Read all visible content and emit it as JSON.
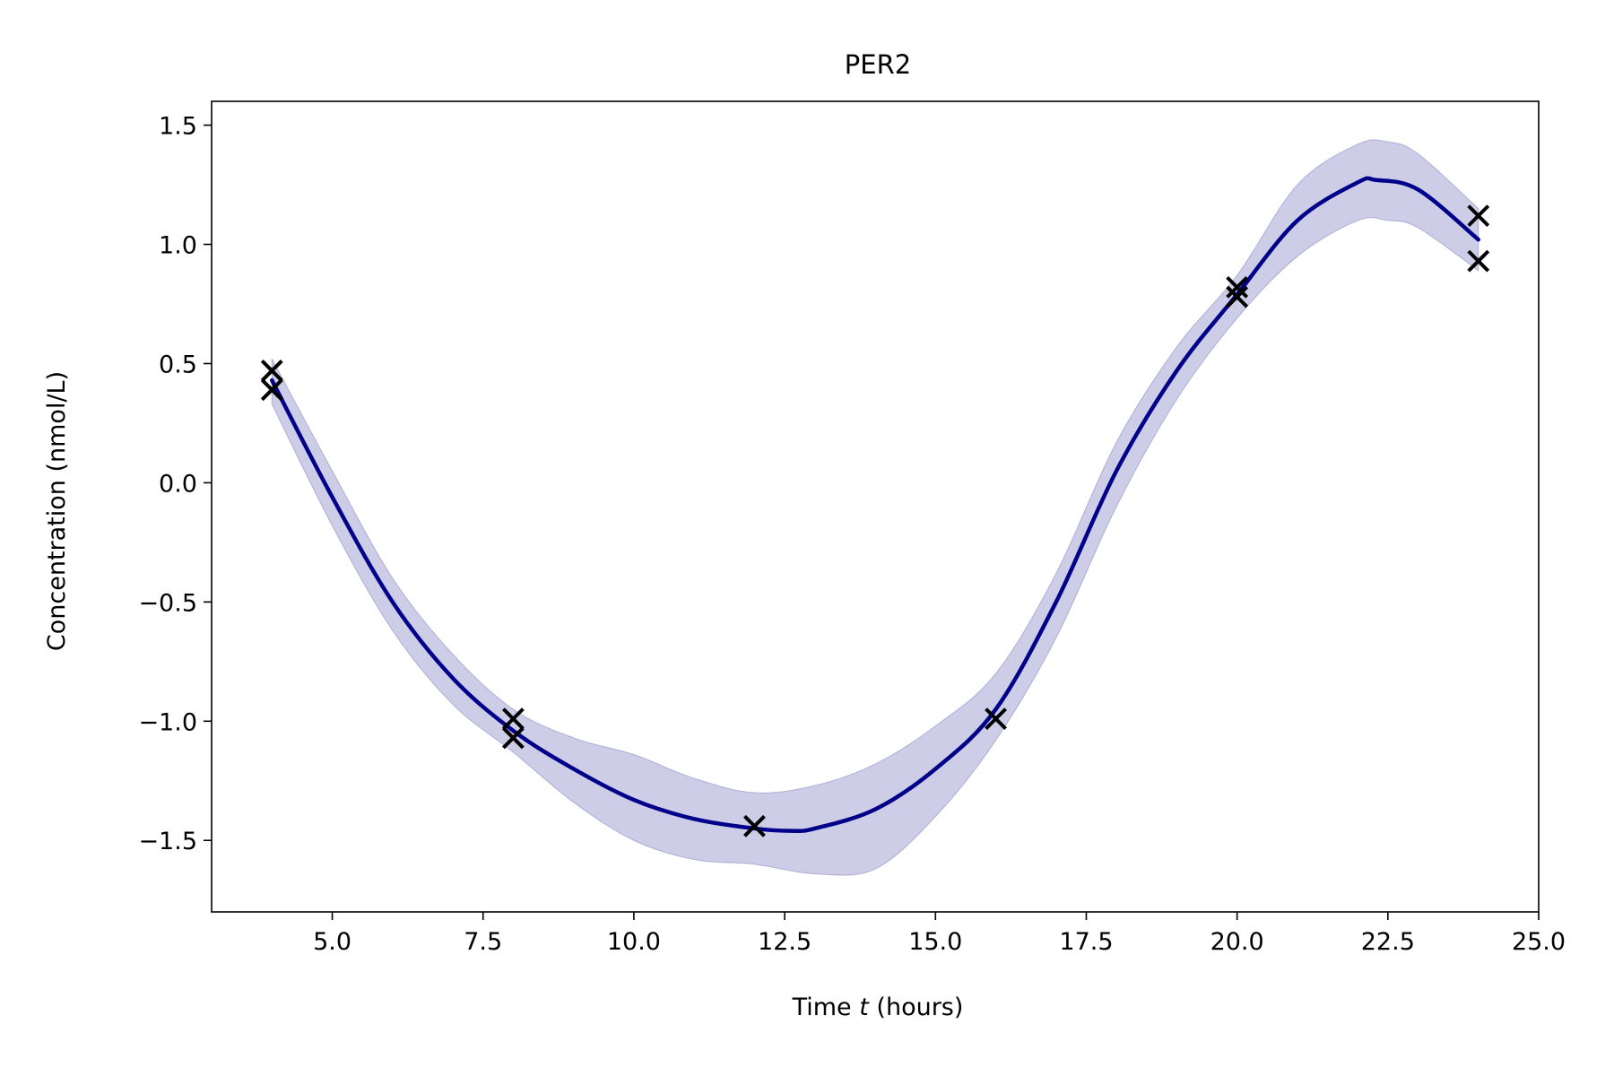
{
  "chart_data": {
    "type": "line",
    "title": "PER2",
    "xlabel_prefix": "Time ",
    "xlabel_var": "t",
    "xlabel_suffix": " (hours)",
    "ylabel": "Concentration (nmol/L)",
    "xlim": [
      3.0,
      25.0
    ],
    "ylim": [
      -1.8,
      1.6
    ],
    "xticks": [
      5.0,
      7.5,
      10.0,
      12.5,
      15.0,
      17.5,
      20.0,
      22.5,
      25.0
    ],
    "xtick_labels": [
      "5.0",
      "7.5",
      "10.0",
      "12.5",
      "15.0",
      "17.5",
      "20.0",
      "22.5",
      "25.0"
    ],
    "yticks": [
      1.5,
      1.0,
      0.5,
      0.0,
      -0.5,
      -1.0,
      -1.5
    ],
    "ytick_labels": [
      "1.5",
      "1.0",
      "0.5",
      "0.0",
      "−0.5",
      "−1.0",
      "−1.5"
    ],
    "grid": false,
    "colors": {
      "mean_line": "#00008b",
      "band_fill": "#7b7bc1",
      "markers": "#000000"
    },
    "mean_curve": {
      "x": [
        4.0,
        5.0,
        6.0,
        7.0,
        8.0,
        9.0,
        10.0,
        11.0,
        12.0,
        12.6,
        13.0,
        14.0,
        15.0,
        16.0,
        17.0,
        18.0,
        19.0,
        20.0,
        21.0,
        22.0,
        22.3,
        23.0,
        24.0
      ],
      "y": [
        0.43,
        -0.06,
        -0.5,
        -0.82,
        -1.04,
        -1.2,
        -1.33,
        -1.41,
        -1.45,
        -1.46,
        -1.45,
        -1.37,
        -1.2,
        -0.95,
        -0.5,
        0.05,
        0.47,
        0.79,
        1.1,
        1.26,
        1.27,
        1.23,
        1.02
      ]
    },
    "confidence_band": {
      "x": [
        4.0,
        5.0,
        6.0,
        7.0,
        8.0,
        9.0,
        10.0,
        11.0,
        12.0,
        13.0,
        14.0,
        15.0,
        16.0,
        17.0,
        18.0,
        19.0,
        20.0,
        21.0,
        22.0,
        22.5,
        23.0,
        24.0
      ],
      "upper": [
        0.52,
        0.05,
        -0.4,
        -0.72,
        -0.95,
        -1.07,
        -1.14,
        -1.24,
        -1.3,
        -1.27,
        -1.18,
        -1.02,
        -0.8,
        -0.38,
        0.17,
        0.57,
        0.87,
        1.25,
        1.42,
        1.43,
        1.38,
        1.15
      ],
      "lower": [
        0.33,
        -0.18,
        -0.62,
        -0.93,
        -1.13,
        -1.34,
        -1.5,
        -1.58,
        -1.6,
        -1.64,
        -1.62,
        -1.4,
        -1.08,
        -0.65,
        -0.1,
        0.35,
        0.69,
        0.95,
        1.1,
        1.1,
        1.07,
        0.89
      ]
    },
    "observations": {
      "x": [
        4.0,
        4.0,
        8.0,
        8.0,
        12.0,
        16.0,
        20.0,
        20.0,
        24.0,
        24.0
      ],
      "y": [
        0.47,
        0.39,
        -0.99,
        -1.07,
        -1.44,
        -0.99,
        0.82,
        0.78,
        1.12,
        0.93
      ]
    }
  }
}
